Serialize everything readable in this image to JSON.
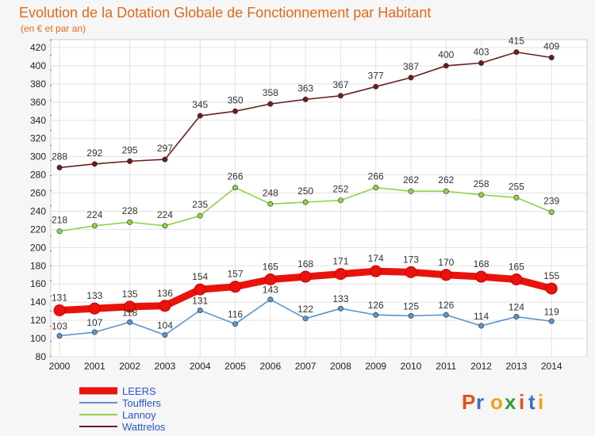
{
  "title": "Evolution de la Dotation Globale de Fonctionnement par Habitant",
  "subtitle": "(en € et par an)",
  "brand": "Proxiti",
  "chart_data": {
    "type": "line",
    "x": [
      "2000",
      "2001",
      "2002",
      "2003",
      "2004",
      "2005",
      "2006",
      "2007",
      "2008",
      "2009",
      "2010",
      "2011",
      "2012",
      "2013",
      "2014"
    ],
    "ylim": [
      80,
      420
    ],
    "yticks": [
      80,
      100,
      120,
      140,
      160,
      180,
      200,
      220,
      240,
      260,
      280,
      300,
      320,
      340,
      360,
      380,
      400,
      420
    ],
    "grid": true,
    "legend_position": "bottom-left",
    "series": [
      {
        "name": "LEERS",
        "color": "#e8140c",
        "values": [
          131,
          133,
          135,
          136,
          154,
          157,
          165,
          168,
          171,
          174,
          173,
          170,
          168,
          165,
          155
        ]
      },
      {
        "name": "Toufflers",
        "color": "#5b93c7",
        "values": [
          103,
          107,
          118,
          104,
          131,
          116,
          143,
          122,
          133,
          126,
          125,
          126,
          114,
          124,
          119
        ]
      },
      {
        "name": "Lannoy",
        "color": "#8ed24a",
        "values": [
          218,
          224,
          228,
          224,
          235,
          266,
          248,
          250,
          252,
          266,
          262,
          262,
          258,
          255,
          239
        ]
      },
      {
        "name": "Wattrelos",
        "color": "#6b1e1e",
        "values": [
          288,
          292,
          295,
          297,
          345,
          350,
          358,
          363,
          367,
          377,
          387,
          400,
          403,
          415,
          409
        ]
      }
    ]
  }
}
